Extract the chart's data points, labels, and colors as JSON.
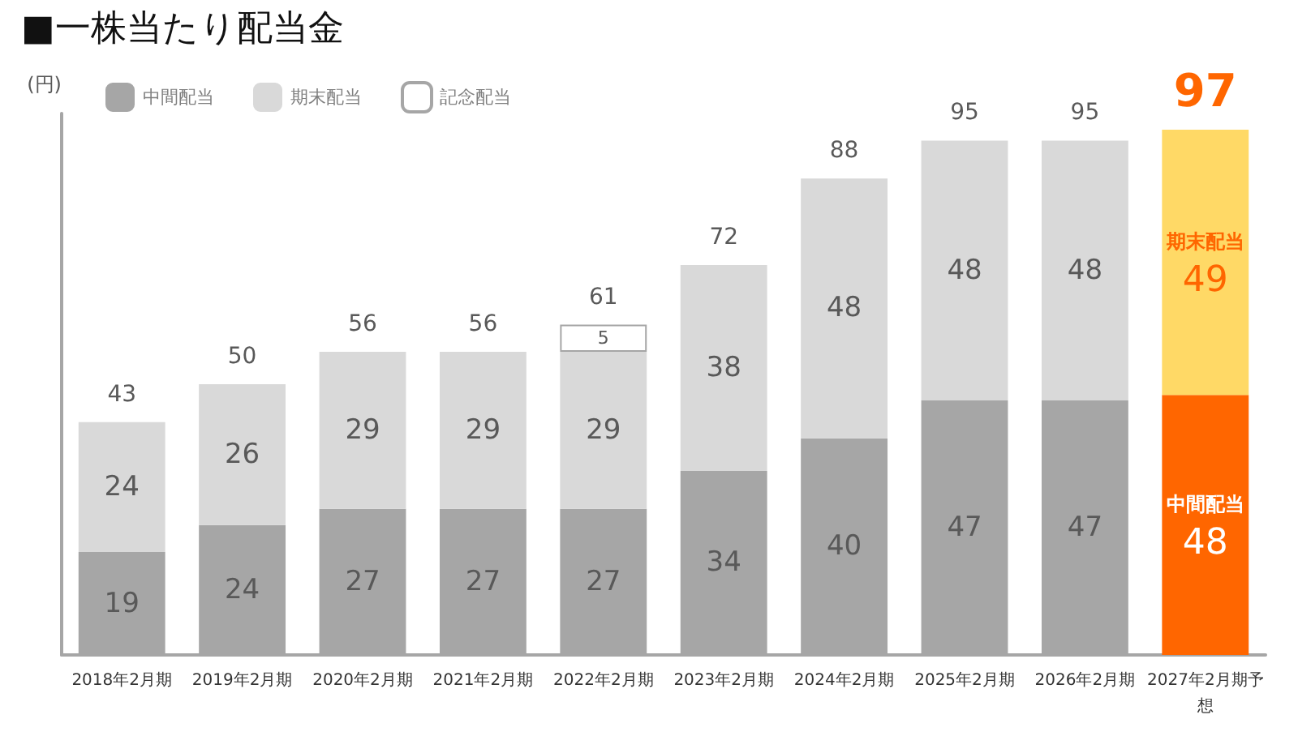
{
  "chart_data": {
    "type": "bar",
    "title": "■一株当たり配当金",
    "ylabel": "(円)",
    "stacked": true,
    "data_labels": true,
    "grid": false,
    "legend": "top left",
    "tick_labels": "x",
    "categories": [
      "2018年2月期",
      "2019年2月期",
      "2020年2月期",
      "2021年2月期",
      "2022年2月期",
      "2023年2月期",
      "2024年2月期",
      "2025年2月期",
      "2026年2月期",
      "2027年2月期予想"
    ],
    "series": [
      {
        "name": "中間配当",
        "color": "#a6a6a6",
        "colors": [
          "#a6a6a6",
          "#a6a6a6",
          "#a6a6a6",
          "#a6a6a6",
          "#a6a6a6",
          "#a6a6a6",
          "#a6a6a6",
          "#a6a6a6",
          "#a6a6a6",
          "#ff6600"
        ],
        "values": [
          19,
          24,
          27,
          27,
          27,
          34,
          40,
          47,
          47,
          48
        ],
        "value_labels": [
          "19",
          "24",
          "27",
          "27",
          "27",
          "34",
          "40",
          "47",
          "47",
          "中間配当\n48"
        ]
      },
      {
        "name": "期末配当",
        "color": "#d9d9d9",
        "colors": [
          "#d9d9d9",
          "#d9d9d9",
          "#d9d9d9",
          "#d9d9d9",
          "#d9d9d9",
          "#d9d9d9",
          "#d9d9d9",
          "#d9d9d9",
          "#d9d9d9",
          "#ffd966"
        ],
        "values": [
          24,
          26,
          29,
          29,
          29,
          38,
          48,
          48,
          48,
          49
        ],
        "value_labels": [
          "24",
          "26",
          "29",
          "29",
          "29",
          "38",
          "48",
          "48",
          "48",
          "期末配当\n49"
        ]
      },
      {
        "name": "記念配当",
        "color": "#ffffff",
        "values": [
          null,
          null,
          null,
          null,
          5,
          null,
          null,
          null,
          null,
          null
        ],
        "value_labels": [
          null,
          null,
          null,
          null,
          "5",
          null,
          null,
          null,
          null,
          null
        ]
      }
    ],
    "totals": [
      "43",
      "50",
      "56",
      "56",
      "61",
      "72",
      "88",
      "95",
      "95",
      "97"
    ]
  }
}
